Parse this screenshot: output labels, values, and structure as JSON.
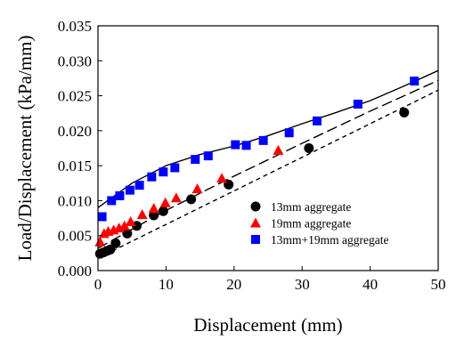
{
  "chart_data": {
    "type": "scatter",
    "xlabel": "Displacement (mm)",
    "ylabel": "Load/Displacement (kPa/mm)",
    "xlim": [
      0,
      50
    ],
    "ylim": [
      0,
      0.035
    ],
    "xticks": [
      "0",
      "10",
      "20",
      "30",
      "40",
      "50"
    ],
    "yticks": [
      "0.000",
      "0.005",
      "0.010",
      "0.015",
      "0.020",
      "0.025",
      "0.030",
      "0.035"
    ],
    "grid": false,
    "legend_position": "bottom-right",
    "series": [
      {
        "name": "13mm aggregate",
        "marker": "circle",
        "color": "#000000",
        "fit_style": "short-dash",
        "fit": [
          [
            0,
            0.0018
          ],
          [
            50,
            0.0258
          ]
        ],
        "points": [
          [
            0.3,
            0.0024
          ],
          [
            0.8,
            0.0026
          ],
          [
            1.3,
            0.0028
          ],
          [
            1.8,
            0.003
          ],
          [
            2.6,
            0.0039
          ],
          [
            4.3,
            0.0053
          ],
          [
            5.7,
            0.0064
          ],
          [
            8.2,
            0.0079
          ],
          [
            9.6,
            0.0085
          ],
          [
            13.7,
            0.0102
          ],
          [
            19.2,
            0.0123
          ],
          [
            31.0,
            0.0175
          ],
          [
            45.0,
            0.0226
          ]
        ]
      },
      {
        "name": "19mm aggregate",
        "marker": "triangle",
        "color": "#ff0000",
        "fit_style": "long-dash",
        "fit": [
          [
            0,
            0.0032
          ],
          [
            10,
            0.0086
          ],
          [
            20,
            0.0135
          ],
          [
            30,
            0.0182
          ],
          [
            40,
            0.0228
          ],
          [
            50,
            0.0272
          ]
        ],
        "points": [
          [
            0.3,
            0.0041
          ],
          [
            0.9,
            0.0053
          ],
          [
            1.5,
            0.0056
          ],
          [
            2.3,
            0.0058
          ],
          [
            3.1,
            0.0061
          ],
          [
            3.9,
            0.0064
          ],
          [
            4.8,
            0.007
          ],
          [
            6.5,
            0.008
          ],
          [
            8.2,
            0.0089
          ],
          [
            9.9,
            0.0097
          ],
          [
            11.5,
            0.0104
          ],
          [
            14.6,
            0.0117
          ],
          [
            18.2,
            0.0132
          ],
          [
            26.5,
            0.0172
          ]
        ]
      },
      {
        "name": "13mm+19mm aggregate",
        "marker": "square",
        "color": "#0000ff",
        "fit_style": "solid",
        "fit": [
          [
            0,
            0.009
          ],
          [
            5,
            0.0125
          ],
          [
            10,
            0.015
          ],
          [
            15,
            0.0166
          ],
          [
            20,
            0.0178
          ],
          [
            25,
            0.0193
          ],
          [
            30,
            0.021
          ],
          [
            35,
            0.0226
          ],
          [
            40,
            0.0243
          ],
          [
            45,
            0.0264
          ],
          [
            50,
            0.0286
          ]
        ],
        "points": [
          [
            0.6,
            0.0077
          ],
          [
            2.0,
            0.01
          ],
          [
            3.2,
            0.0107
          ],
          [
            4.7,
            0.0115
          ],
          [
            6.1,
            0.0122
          ],
          [
            7.9,
            0.0134
          ],
          [
            9.6,
            0.0141
          ],
          [
            11.3,
            0.0147
          ],
          [
            14.3,
            0.0159
          ],
          [
            16.2,
            0.0164
          ],
          [
            20.2,
            0.018
          ],
          [
            21.8,
            0.0179
          ],
          [
            24.3,
            0.0186
          ],
          [
            28.1,
            0.0197
          ],
          [
            32.2,
            0.0214
          ],
          [
            38.2,
            0.0238
          ],
          [
            46.5,
            0.0271
          ]
        ]
      }
    ]
  }
}
